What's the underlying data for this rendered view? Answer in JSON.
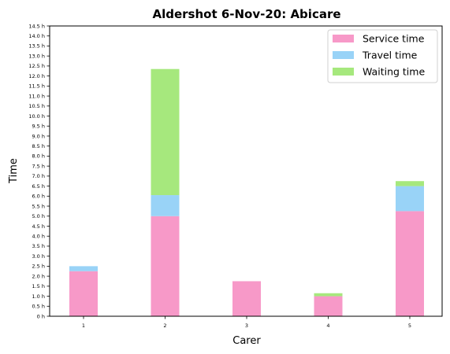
{
  "chart_data": {
    "type": "bar",
    "stacked": true,
    "title": "Aldershot 6-Nov-20: Abicare",
    "xlabel": "Carer",
    "ylabel": "Time",
    "categories": [
      "1",
      "2",
      "3",
      "4",
      "5"
    ],
    "series": [
      {
        "name": "Service time",
        "color": "#f799c8",
        "values": [
          2.25,
          5.0,
          1.75,
          1.0,
          5.25
        ]
      },
      {
        "name": "Travel time",
        "color": "#99d3f7",
        "values": [
          0.25,
          1.05,
          0.0,
          0.0,
          1.25
        ]
      },
      {
        "name": "Waiting time",
        "color": "#a6e87d",
        "values": [
          0.0,
          6.3,
          0.0,
          0.15,
          0.25
        ]
      }
    ],
    "ylim": [
      0,
      14.5
    ],
    "ytick_step": 0.5,
    "ytick_labels": [
      "0 h",
      "0.5 h",
      "1.0 h",
      "1.5 h",
      "2.0 h",
      "2.5 h",
      "3.0 h",
      "3.5 h",
      "4.0 h",
      "4.5 h",
      "5.0 h",
      "5.5 h",
      "6.0 h",
      "6.5 h",
      "7.0 h",
      "7.5 h",
      "8.0 h",
      "8.5 h",
      "9.0 h",
      "9.5 h",
      "10.0 h",
      "10.5 h",
      "11.0 h",
      "11.5 h",
      "12.0 h",
      "12.5 h",
      "13.0 h",
      "13.5 h",
      "14.0 h",
      "14.5 h"
    ],
    "grid": false,
    "legend_position": "top-right"
  }
}
